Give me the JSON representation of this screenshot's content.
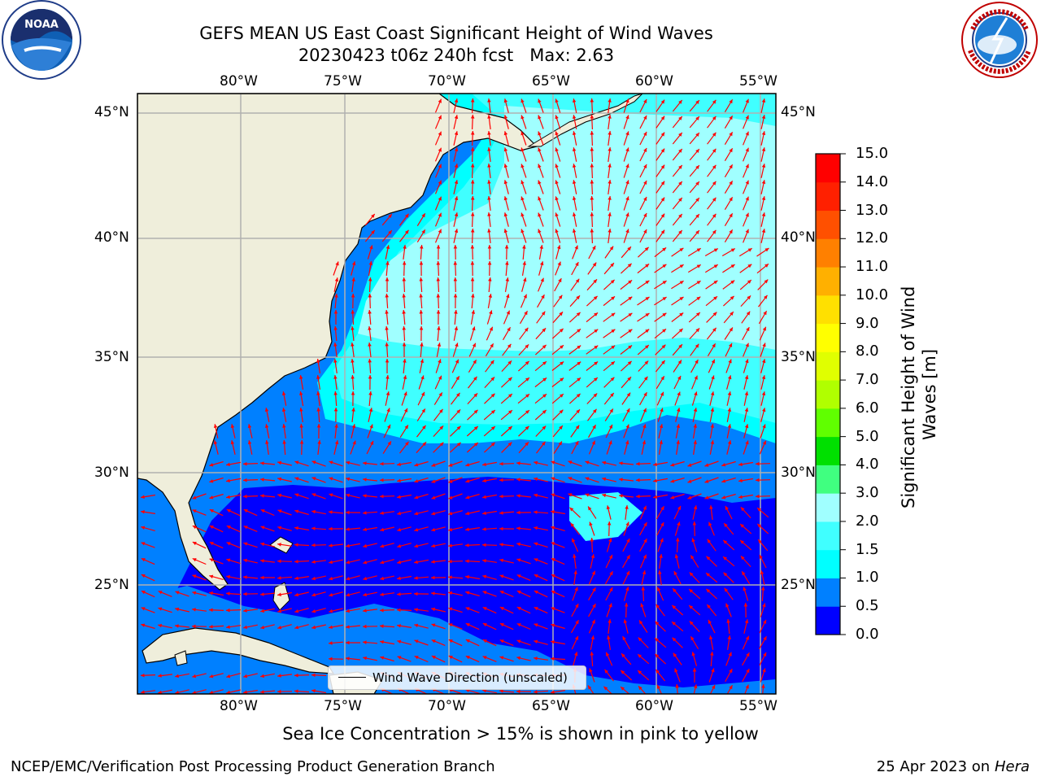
{
  "title_line1": "GEFS MEAN US East Coast Significant Height of Wind Waves",
  "title_line2": "20230423 t06z 240h fcst   Max: 2.63",
  "logos": {
    "left": {
      "icon": "noaa-logo-icon",
      "text": "NOAA"
    },
    "right": {
      "icon": "nws-logo-icon",
      "text": "NATIONAL WEATHER SERVICE"
    }
  },
  "lon_labels": [
    "80°W",
    "75°W",
    "70°W",
    "65°W",
    "60°W",
    "55°W"
  ],
  "lat_labels": [
    "45°N",
    "40°N",
    "35°N",
    "30°N",
    "25°N"
  ],
  "legend_label": "Wind Wave Direction (unscaled)",
  "colorbar": {
    "label_line1": "Significant Height of Wind",
    "label_line2": "Waves [m]",
    "ticks": [
      "0.0",
      "0.5",
      "1.0",
      "1.5",
      "2.0",
      "3.0",
      "4.0",
      "5.0",
      "6.0",
      "7.0",
      "8.0",
      "9.0",
      "10.0",
      "11.0",
      "12.0",
      "13.0",
      "14.0",
      "15.0"
    ],
    "colors": [
      "#0000ff",
      "#0080ff",
      "#00ffff",
      "#40ffff",
      "#a0ffff",
      "#40ff80",
      "#00e000",
      "#60ff00",
      "#b0ff00",
      "#e0ff00",
      "#ffff00",
      "#ffe000",
      "#ffb000",
      "#ff8000",
      "#ff5000",
      "#ff2000",
      "#ff0000"
    ]
  },
  "map_colors": {
    "land": "#efeedb",
    "grid": "#b0b0b0",
    "arrow": "#ff0000",
    "coast": "#000000"
  },
  "ice_note": "Sea Ice Concentration > 15% is shown in pink to yellow",
  "footer_left": "NCEP/EMC/Verification Post Processing Product Generation Branch",
  "footer_right_date": "25 Apr 2023 on ",
  "footer_right_machine": "Hera"
}
